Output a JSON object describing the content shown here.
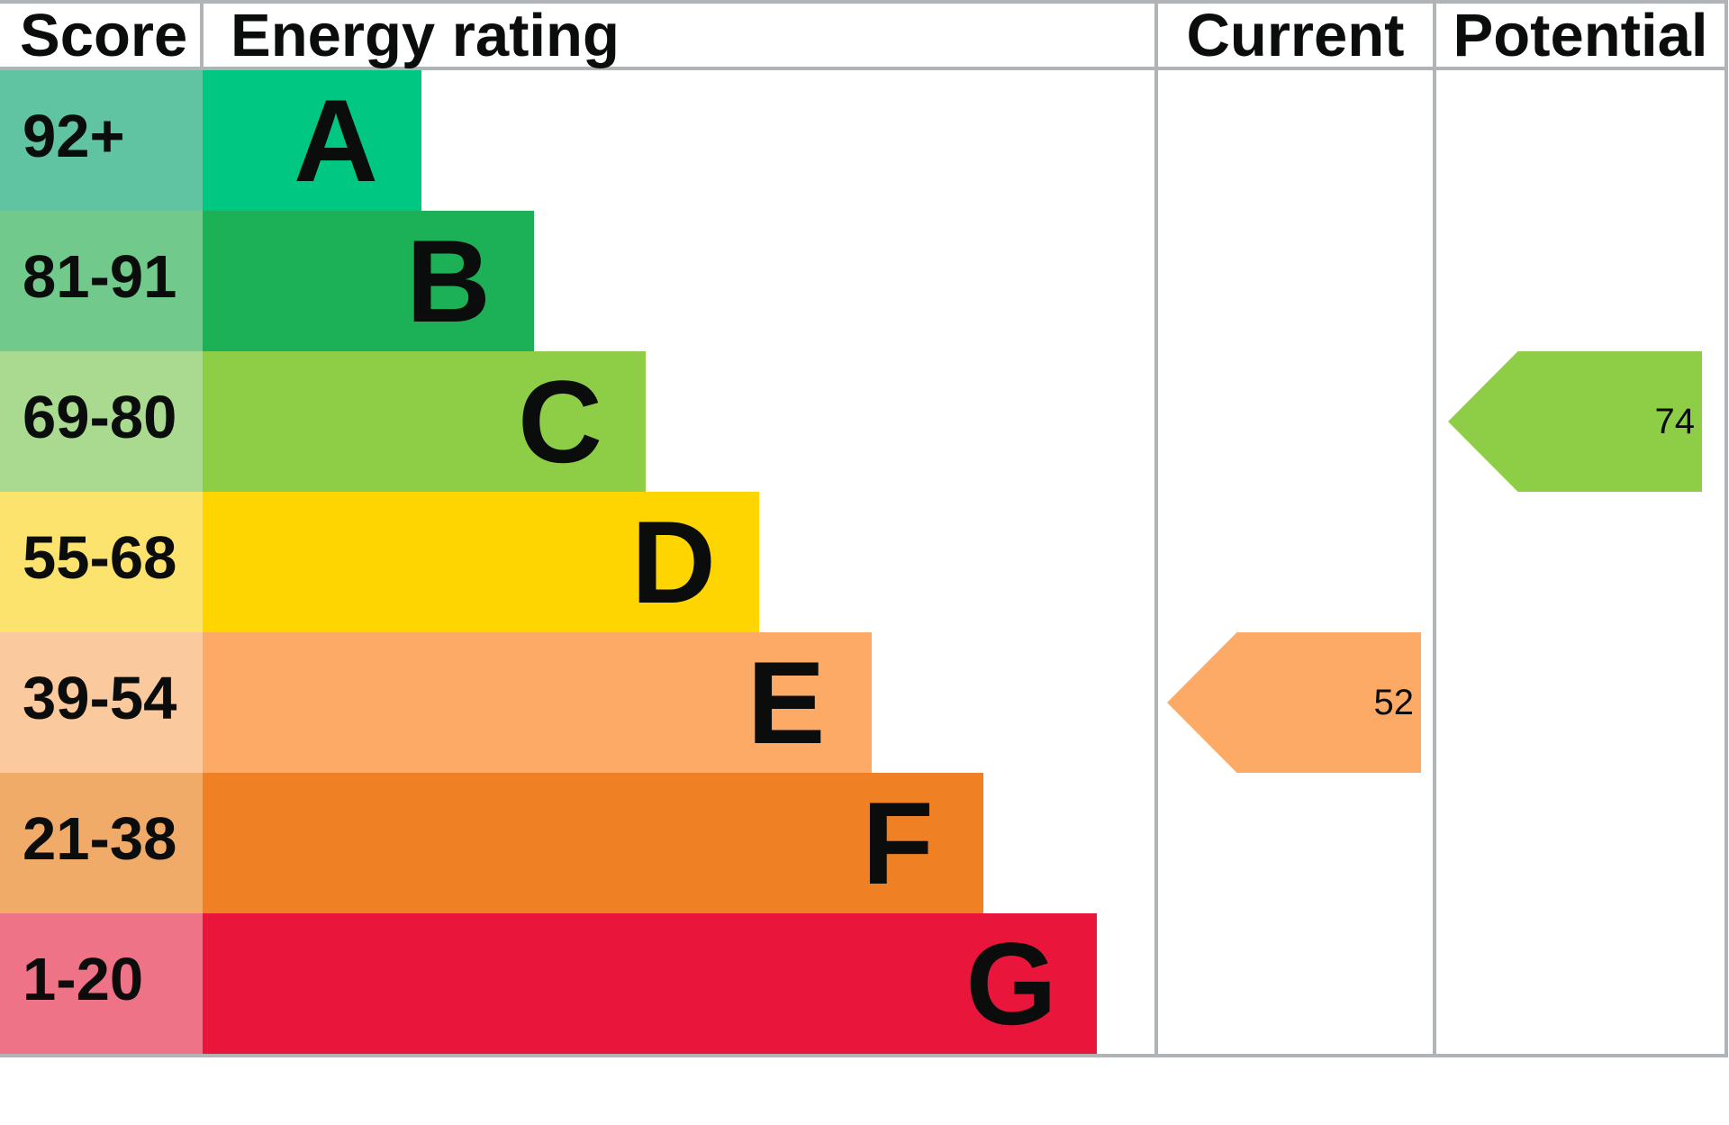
{
  "chart_type": "epc-energy-rating",
  "header": {
    "score": "Score",
    "energy_rating": "Energy rating",
    "current": "Current",
    "potential": "Potential"
  },
  "colors": {
    "border": "#b1b4b6",
    "text": "#0b0c0c",
    "background": "#ffffff"
  },
  "chart_data": {
    "type": "bar",
    "title": "Energy rating",
    "columns": [
      "Score",
      "Energy rating",
      "Current",
      "Potential"
    ],
    "bands": [
      {
        "score_range": "92+",
        "letter": "A",
        "bar_color": "#00c781",
        "score_bg": "#60c3a2"
      },
      {
        "score_range": "81-91",
        "letter": "B",
        "bar_color": "#1cb156",
        "score_bg": "#71c98c"
      },
      {
        "score_range": "69-80",
        "letter": "C",
        "bar_color": "#8dce46",
        "score_bg": "#a9da90"
      },
      {
        "score_range": "55-68",
        "letter": "D",
        "bar_color": "#ffd500",
        "score_bg": "#fce36e"
      },
      {
        "score_range": "39-54",
        "letter": "E",
        "bar_color": "#fcaa65",
        "score_bg": "#fbc99e"
      },
      {
        "score_range": "21-38",
        "letter": "F",
        "bar_color": "#ef8023",
        "score_bg": "#f1ab68"
      },
      {
        "score_range": "1-20",
        "letter": "G",
        "bar_color": "#e9153b",
        "score_bg": "#ef7386"
      }
    ],
    "markers": [
      {
        "name": "Current",
        "value": 52,
        "band_letter": "E",
        "color": "#fcaa65"
      },
      {
        "name": "Potential",
        "value": 74,
        "band_letter": "C",
        "color": "#8dce46"
      }
    ]
  }
}
